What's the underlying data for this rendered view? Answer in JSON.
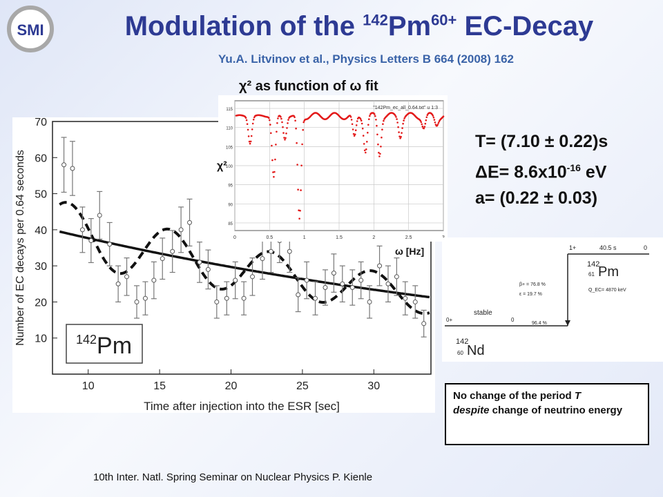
{
  "slide": {
    "logo_text": "SMI",
    "title_pre": "Modulation of the ",
    "title_sup1": "142",
    "title_mid": "Pm",
    "title_sup2": "60+",
    "title_post": " EC-Decay",
    "subtitle": "Yu.A. Litvinov et al., Physics Letters B 664 (2008) 162",
    "chi_title": "χ² as function of ω fit",
    "results": {
      "period": "T= (7.10 ± 0.22)s",
      "energy_pre": "ΔE= 8.6x10",
      "energy_exp": "-16",
      "energy_post": " eV",
      "amplitude": "a= (0.22 ± 0.03)"
    },
    "note_line1_pre": "No change of the period ",
    "note_T": "T",
    "note_despite": "despite",
    "note_line2": " change of neutrino energy",
    "footer": "10th Inter. Natl. Spring Seminar on Nuclear Physics   P. Kienle",
    "omega_label": "ω [Hz]",
    "chi2_label": "χ²"
  },
  "decay_scheme": {
    "parent_spin": "1+",
    "parent_halflife": "40.5 s",
    "parent_energy": "0",
    "parent_mass": "142",
    "parent_z": "61",
    "parent_symbol": "Pm",
    "q_value": "Q_EC= 4870 keV",
    "beta_branch": "β+ = 76.8 %",
    "ec_branch": "ε = 19.7 %",
    "daughter_spin": "0+",
    "daughter_state": "stable",
    "daughter_energy": "0",
    "daughter_branch": "96.4 %",
    "daughter_mass": "142",
    "daughter_z": "60",
    "daughter_symbol": "Nd"
  },
  "chart_data": [
    {
      "type": "scatter",
      "xlabel": "Time after injection into the ESR [sec]",
      "ylabel": "Number of EC decays per 0.64 seconds",
      "label": "142Pm",
      "xlim": [
        7.5,
        34
      ],
      "ylim": [
        0,
        70
      ],
      "xticks": [
        10,
        15,
        20,
        25,
        30
      ],
      "yticks": [
        10,
        20,
        30,
        40,
        50,
        60,
        70
      ],
      "points": [
        {
          "x": 8.3,
          "y": 58,
          "err": 7.6
        },
        {
          "x": 8.9,
          "y": 57,
          "err": 7.5
        },
        {
          "x": 9.6,
          "y": 40,
          "err": 6.3
        },
        {
          "x": 10.2,
          "y": 37,
          "err": 6.1
        },
        {
          "x": 10.8,
          "y": 44,
          "err": 6.6
        },
        {
          "x": 11.5,
          "y": 36,
          "err": 6.0
        },
        {
          "x": 12.1,
          "y": 25,
          "err": 5.0
        },
        {
          "x": 12.7,
          "y": 27,
          "err": 5.2
        },
        {
          "x": 13.4,
          "y": 20,
          "err": 4.5
        },
        {
          "x": 14.0,
          "y": 21,
          "err": 4.6
        },
        {
          "x": 14.6,
          "y": 26,
          "err": 5.1
        },
        {
          "x": 15.2,
          "y": 32,
          "err": 5.7
        },
        {
          "x": 15.9,
          "y": 34,
          "err": 5.8
        },
        {
          "x": 16.5,
          "y": 40,
          "err": 6.3
        },
        {
          "x": 17.1,
          "y": 42,
          "err": 6.5
        },
        {
          "x": 17.8,
          "y": 31,
          "err": 5.6
        },
        {
          "x": 18.4,
          "y": 29,
          "err": 5.4
        },
        {
          "x": 19.0,
          "y": 20,
          "err": 4.5
        },
        {
          "x": 19.7,
          "y": 21,
          "err": 4.6
        },
        {
          "x": 20.3,
          "y": 26,
          "err": 5.1
        },
        {
          "x": 20.9,
          "y": 21,
          "err": 4.6
        },
        {
          "x": 21.5,
          "y": 27,
          "err": 5.2
        },
        {
          "x": 22.2,
          "y": 32,
          "err": 5.7
        },
        {
          "x": 22.8,
          "y": 34,
          "err": 5.8
        },
        {
          "x": 23.4,
          "y": 37,
          "err": 6.1
        },
        {
          "x": 24.1,
          "y": 34,
          "err": 5.8
        },
        {
          "x": 24.7,
          "y": 22,
          "err": 4.7
        },
        {
          "x": 25.3,
          "y": 26,
          "err": 5.1
        },
        {
          "x": 25.9,
          "y": 21,
          "err": 4.6
        },
        {
          "x": 26.6,
          "y": 24,
          "err": 4.9
        },
        {
          "x": 27.2,
          "y": 28,
          "err": 5.3
        },
        {
          "x": 27.8,
          "y": 25,
          "err": 5.0
        },
        {
          "x": 28.5,
          "y": 24,
          "err": 4.9
        },
        {
          "x": 29.1,
          "y": 26,
          "err": 5.1
        },
        {
          "x": 29.7,
          "y": 20,
          "err": 4.5
        },
        {
          "x": 30.4,
          "y": 30,
          "err": 5.5
        },
        {
          "x": 31.0,
          "y": 25,
          "err": 5.0
        },
        {
          "x": 31.6,
          "y": 27,
          "err": 5.2
        },
        {
          "x": 32.2,
          "y": 21,
          "err": 4.6
        },
        {
          "x": 32.9,
          "y": 20,
          "err": 4.5
        },
        {
          "x": 33.5,
          "y": 14,
          "err": 3.7
        }
      ],
      "fit_exponential": {
        "a0": 39.5,
        "lambda": 0.0238,
        "t0": 8
      },
      "fit_modulated": {
        "a0": 39.5,
        "lambda": 0.0238,
        "t0": 8,
        "amplitude": 0.22,
        "period": 7.1,
        "phase_peak": 8.6
      }
    },
    {
      "type": "scatter",
      "xlabel": "ω [Hz]",
      "ylabel": "χ²",
      "legend": "\"142Pm_ec_all_0.64.txt\" u 1:3",
      "xlim": [
        0,
        3
      ],
      "ylim": [
        83,
        117
      ],
      "xticks": [
        0,
        0.5,
        1,
        1.5,
        2,
        2.5,
        3
      ],
      "xtick_labels": [
        "0",
        "0.5",
        "1",
        "1.5",
        "2",
        "2.5",
        "3"
      ],
      "yticks": [
        85,
        90,
        95,
        100,
        105,
        110,
        115
      ],
      "baseline": 113,
      "dips": [
        {
          "x": 0.22,
          "depth": 7
        },
        {
          "x": 0.56,
          "depth": 16
        },
        {
          "x": 0.72,
          "depth": 6
        },
        {
          "x": 0.93,
          "depth": 27
        },
        {
          "x": 1.72,
          "depth": 6
        },
        {
          "x": 1.88,
          "depth": 9
        },
        {
          "x": 2.08,
          "depth": 10
        },
        {
          "x": 2.38,
          "depth": 5
        },
        {
          "x": 2.72,
          "depth": 3
        },
        {
          "x": 2.9,
          "depth": 2
        }
      ]
    }
  ]
}
